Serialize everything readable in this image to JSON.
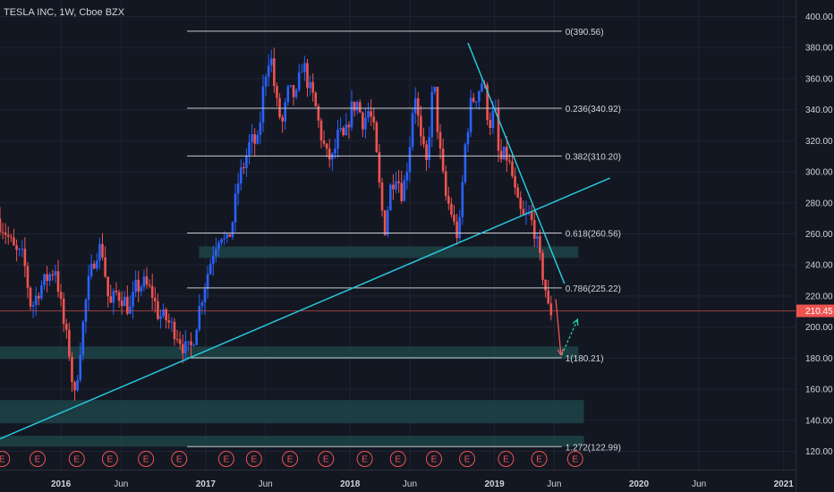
{
  "chart_data": {
    "type": "candlestick",
    "title": "TESLA INC, 1W, Cboe BZX",
    "y_axis": {
      "ylim": [
        110,
        410
      ],
      "ticks": [
        120,
        140,
        160,
        180,
        200,
        220,
        240,
        260,
        280,
        300,
        320,
        340,
        360,
        380,
        400
      ],
      "tick_labels": [
        "120.00",
        "140.00",
        "160.00",
        "180.00",
        "200.00",
        "220.00",
        "240.00",
        "260.00",
        "280.00",
        "300.00",
        "320.00",
        "340.00",
        "360.00",
        "380.00",
        "400.00"
      ],
      "last_price": 210.45,
      "last_price_label": "210.45"
    },
    "x_axis": {
      "xlim": [
        "2015-07-31",
        "2021-01-31"
      ],
      "ticks": [
        {
          "date": "2016-01-01",
          "label": "2016",
          "major": true
        },
        {
          "date": "2016-06-01",
          "label": "Jun",
          "major": false
        },
        {
          "date": "2017-01-01",
          "label": "2017",
          "major": true
        },
        {
          "date": "2017-06-01",
          "label": "Jun",
          "major": false
        },
        {
          "date": "2018-01-01",
          "label": "2018",
          "major": true
        },
        {
          "date": "2018-06-01",
          "label": "Jun",
          "major": false
        },
        {
          "date": "2019-01-01",
          "label": "2019",
          "major": true
        },
        {
          "date": "2019-06-01",
          "label": "Jun",
          "major": false
        },
        {
          "date": "2020-01-01",
          "label": "2020",
          "major": true
        },
        {
          "date": "2020-06-01",
          "label": "Jun",
          "major": false
        },
        {
          "date": "2021-01-01",
          "label": "2021",
          "major": true
        }
      ]
    },
    "fib_levels": [
      {
        "label": "0(390.56)",
        "value": 390.56
      },
      {
        "label": "0.236(340.92)",
        "value": 340.92
      },
      {
        "label": "0.382(310.20)",
        "value": 310.2
      },
      {
        "label": "0.618(260.56)",
        "value": 260.56
      },
      {
        "label": "0.786(225.22)",
        "value": 225.22
      },
      {
        "label": "1(180.21)",
        "value": 180.21
      },
      {
        "label": "1.272(122.99)",
        "value": 122.99
      }
    ],
    "fib_range": [
      "2016-11-15",
      "2019-06-20"
    ],
    "zones": [
      {
        "from": "2016-12-15",
        "to": "2019-08-01",
        "low": 244.5,
        "high": 252
      },
      {
        "from": "2015-07-31",
        "to": "2019-08-01",
        "low": 179.5,
        "high": 187.5
      },
      {
        "from": "2015-07-31",
        "to": "2019-08-15",
        "low": 138,
        "high": 153
      },
      {
        "from": "2015-07-31",
        "to": "2019-08-15",
        "low": 123,
        "high": 130
      }
    ],
    "trendlines": [
      {
        "name": "rising-support",
        "points": [
          [
            "2015-07-31",
            128
          ],
          [
            "2019-10-20",
            296
          ]
        ]
      },
      {
        "name": "falling-resistance",
        "points": [
          [
            "2018-10-26",
            383
          ],
          [
            "2019-06-27",
            228
          ]
        ]
      }
    ],
    "arrows": [
      {
        "name": "projection-down",
        "from": [
          "2019-06-05",
          218
        ],
        "to": [
          "2019-06-18",
          182
        ],
        "color": "#f05454",
        "dashed": false
      },
      {
        "name": "projection-up",
        "from": [
          "2019-06-20",
          182
        ],
        "to": [
          "2019-07-30",
          205
        ],
        "color": "#26c6a6",
        "dashed": true
      }
    ],
    "price_series": [
      [
        "2015-07-31",
        270
      ],
      [
        "2015-08-20",
        262
      ],
      [
        "2015-09-15",
        248
      ],
      [
        "2015-10-05",
        245
      ],
      [
        "2015-10-25",
        212
      ],
      [
        "2015-11-15",
        225
      ],
      [
        "2015-12-05",
        232
      ],
      [
        "2015-12-25",
        238
      ],
      [
        "2016-01-15",
        202
      ],
      [
        "2016-02-01",
        180
      ],
      [
        "2016-02-10",
        150
      ],
      [
        "2016-02-25",
        185
      ],
      [
        "2016-03-15",
        225
      ],
      [
        "2016-04-05",
        248
      ],
      [
        "2016-04-20",
        252
      ],
      [
        "2016-05-10",
        212
      ],
      [
        "2016-05-25",
        222
      ],
      [
        "2016-06-15",
        218
      ],
      [
        "2016-06-30",
        210
      ],
      [
        "2016-07-15",
        225
      ],
      [
        "2016-08-05",
        228
      ],
      [
        "2016-08-25",
        222
      ],
      [
        "2016-09-10",
        208
      ],
      [
        "2016-09-30",
        205
      ],
      [
        "2016-10-15",
        200
      ],
      [
        "2016-10-30",
        195
      ],
      [
        "2016-11-15",
        186
      ],
      [
        "2016-11-30",
        185
      ],
      [
        "2016-12-10",
        195
      ],
      [
        "2016-12-25",
        215
      ],
      [
        "2017-01-10",
        232
      ],
      [
        "2017-01-30",
        252
      ],
      [
        "2017-02-15",
        262
      ],
      [
        "2017-03-01",
        252
      ],
      [
        "2017-03-15",
        265
      ],
      [
        "2017-04-01",
        295
      ],
      [
        "2017-04-15",
        305
      ],
      [
        "2017-05-01",
        320
      ],
      [
        "2017-05-20",
        318
      ],
      [
        "2017-06-05",
        360
      ],
      [
        "2017-06-20",
        378
      ],
      [
        "2017-07-05",
        345
      ],
      [
        "2017-07-20",
        330
      ],
      [
        "2017-08-05",
        352
      ],
      [
        "2017-08-25",
        348
      ],
      [
        "2017-09-10",
        372
      ],
      [
        "2017-09-25",
        355
      ],
      [
        "2017-10-10",
        345
      ],
      [
        "2017-10-25",
        325
      ],
      [
        "2017-11-10",
        310
      ],
      [
        "2017-11-25",
        308
      ],
      [
        "2017-12-10",
        325
      ],
      [
        "2017-12-25",
        320
      ],
      [
        "2018-01-10",
        340
      ],
      [
        "2018-01-25",
        345
      ],
      [
        "2018-02-10",
        332
      ],
      [
        "2018-02-25",
        340
      ],
      [
        "2018-03-10",
        325
      ],
      [
        "2018-03-25",
        285
      ],
      [
        "2018-04-05",
        262
      ],
      [
        "2018-04-20",
        290
      ],
      [
        "2018-05-05",
        300
      ],
      [
        "2018-05-20",
        285
      ],
      [
        "2018-06-05",
        310
      ],
      [
        "2018-06-20",
        355
      ],
      [
        "2018-07-05",
        320
      ],
      [
        "2018-07-20",
        305
      ],
      [
        "2018-08-07",
        360
      ],
      [
        "2018-08-20",
        320
      ],
      [
        "2018-09-05",
        285
      ],
      [
        "2018-09-20",
        275
      ],
      [
        "2018-10-01",
        262
      ],
      [
        "2018-10-10",
        258
      ],
      [
        "2018-10-25",
        315
      ],
      [
        "2018-11-10",
        345
      ],
      [
        "2018-11-25",
        350
      ],
      [
        "2018-12-10",
        360
      ],
      [
        "2018-12-25",
        330
      ],
      [
        "2019-01-10",
        340
      ],
      [
        "2019-01-20",
        305
      ],
      [
        "2019-02-05",
        312
      ],
      [
        "2019-02-20",
        300
      ],
      [
        "2019-03-05",
        280
      ],
      [
        "2019-03-20",
        270
      ],
      [
        "2019-04-05",
        272
      ],
      [
        "2019-04-20",
        262
      ],
      [
        "2019-05-01",
        245
      ],
      [
        "2019-05-15",
        228
      ],
      [
        "2019-05-25",
        210
      ]
    ],
    "earnings_markers": {
      "label": "E",
      "dates": [
        "2015-08-05",
        "2015-11-03",
        "2016-02-10",
        "2016-05-04",
        "2016-08-03",
        "2016-10-26",
        "2017-02-22",
        "2017-05-03",
        "2017-08-02",
        "2017-11-01",
        "2018-02-07",
        "2018-05-02",
        "2018-08-01",
        "2018-10-24",
        "2019-01-30",
        "2019-04-24",
        "2019-07-24"
      ]
    },
    "colors": {
      "background": "#131722",
      "grid": "#1f2433",
      "up": "#2962ff",
      "down": "#ef5350",
      "text": "#d1d4dc",
      "fib": "#c8cad0",
      "zone": "#1f4a4c",
      "trendline": "#26c6da",
      "last_price": "#ef5350",
      "earnings": "#ef5350"
    }
  }
}
